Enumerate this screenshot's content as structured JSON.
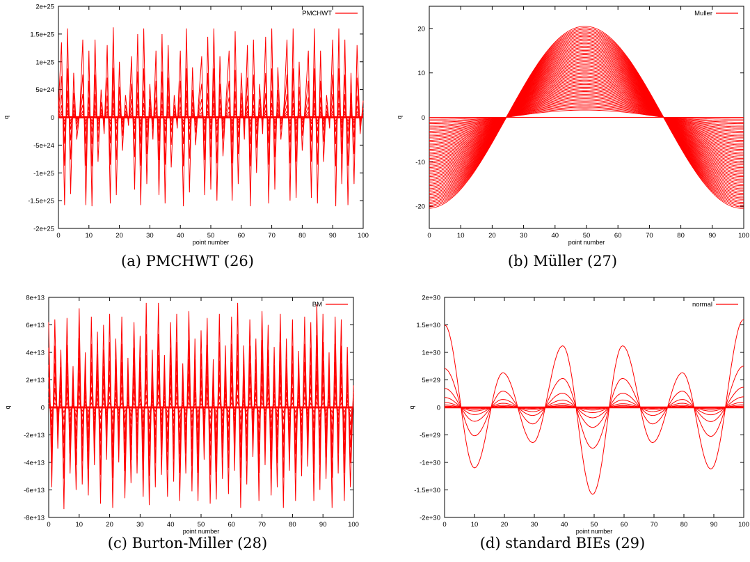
{
  "chart_data": [
    {
      "type": "line",
      "caption": "(a) PMCHWT (26)",
      "xlabel": "point number",
      "ylabel": "q",
      "xlim": [
        0,
        100
      ],
      "ylim": [
        -2e+25,
        2e+25
      ],
      "xticks": [
        "0",
        "10",
        "20",
        "30",
        "40",
        "50",
        "60",
        "70",
        "80",
        "90",
        "100"
      ],
      "yticks": [
        "-2e+25",
        "-1.5e+25",
        "-1e+25",
        "-5e+24",
        "0",
        "5e+24",
        "1e+25",
        "1.5e+25",
        "2e+25"
      ],
      "legend": "top-right",
      "grid": false,
      "series": [
        {
          "name": "PMCHWT",
          "color": "#ff0000",
          "values": [
            2e+24,
            1.35e+25,
            -1.58e+25,
            1.6e+25,
            -1.38e+25,
            8e+24,
            -4e+24,
            1e+24,
            1.4e+25,
            -1.58e+25,
            1.2e+25,
            -1.6e+25,
            1.4e+25,
            -8e+24,
            5e+24,
            -3e+24,
            1.3e+25,
            -1.55e+25,
            1.62e+25,
            -1.4e+25,
            1e+25,
            -6e+24,
            4e+24,
            -1.5e+24,
            1.1e+25,
            -1.3e+25,
            1.5e+25,
            -1.58e+25,
            1.6e+25,
            -1.2e+25,
            6e+24,
            -4e+24,
            1.2e+25,
            -1.4e+25,
            1.5e+25,
            -1.55e+25,
            1.3e+25,
            -9e+24,
            4e+24,
            -2e+24,
            1.2e+25,
            -1.6e+25,
            1.6e+25,
            -1.35e+25,
            9e+24,
            -5e+24,
            3e+24,
            1.1e+25,
            -1.4e+25,
            1.45e+25,
            -1.3e+25,
            1.6e+25,
            -1.5e+25,
            1.1e+25,
            -7e+24,
            3e+24,
            1.2e+25,
            -1.5e+25,
            1.55e+25,
            -1.2e+25,
            8e+24,
            -4e+24,
            1.3e+25,
            -1.6e+25,
            1.4e+25,
            -1e+25,
            6e+24,
            -3e+24,
            1.45e+25,
            -1.55e+25,
            1.6e+25,
            -1.3e+25,
            9e+24,
            -4e+24,
            2e+24,
            1.4e+25,
            -1.5e+25,
            1.6e+25,
            -1.45e+25,
            1e+25,
            -6e+24,
            3e+24,
            1.2e+25,
            -1.45e+25,
            1.6e+25,
            -1.55e+25,
            1.2e+25,
            -8e+24,
            4e+24,
            -2e+24,
            1.4e+25,
            -1.6e+25,
            1.6e+25,
            -1.2e+25,
            1.4e+25,
            -1.58e+25,
            8e+24,
            -1.2e+25,
            1.3e+25,
            -3e+24,
            3e+24
          ]
        }
      ]
    },
    {
      "type": "line",
      "caption": "(b) Müller (27)",
      "xlabel": "point number",
      "ylabel": "q",
      "xlim": [
        0,
        100
      ],
      "ylim": [
        -25,
        25
      ],
      "xticks": [
        "0",
        "10",
        "20",
        "30",
        "40",
        "50",
        "60",
        "70",
        "80",
        "90",
        "100"
      ],
      "yticks": [
        "-20",
        "-10",
        "0",
        "10",
        "20"
      ],
      "legend": "top-right",
      "grid": false,
      "series": [
        {
          "name": "Muller",
          "color": "#ff0000",
          "amplitude": 20.5,
          "peak_x": 49.5,
          "zero_crossings": [
            24.5,
            74.5
          ]
        }
      ]
    },
    {
      "type": "line",
      "caption": "(c) Burton-Miller (28)",
      "xlabel": "point number",
      "ylabel": "q",
      "xlim": [
        0,
        100
      ],
      "ylim": [
        -80000000000000.0,
        80000000000000.0
      ],
      "xticks": [
        "0",
        "10",
        "20",
        "30",
        "40",
        "50",
        "60",
        "70",
        "80",
        "90",
        "100"
      ],
      "yticks": [
        "-8e+13",
        "-6e+13",
        "-4e+13",
        "-2e+13",
        "0",
        "2e+13",
        "4e+13",
        "6e+13",
        "8e+13"
      ],
      "legend": "top-right",
      "grid": false,
      "series": [
        {
          "name": "BM",
          "color": "#ff0000",
          "values": [
            62000000000000.0,
            -58000000000000.0,
            64000000000000.0,
            -30000000000000.0,
            42000000000000.0,
            -74000000000000.0,
            65000000000000.0,
            -48000000000000.0,
            30000000000000.0,
            -60000000000000.0,
            72000000000000.0,
            -56000000000000.0,
            40000000000000.0,
            -64000000000000.0,
            66000000000000.0,
            -42000000000000.0,
            55000000000000.0,
            -70000000000000.0,
            60000000000000.0,
            -38000000000000.0,
            68000000000000.0,
            -73000000000000.0,
            50000000000000.0,
            -40000000000000.0,
            66000000000000.0,
            -66000000000000.0,
            36000000000000.0,
            -55000000000000.0,
            62000000000000.0,
            -48000000000000.0,
            52000000000000.0,
            -65000000000000.0,
            76000000000000.0,
            -71000000000000.0,
            42000000000000.0,
            -58000000000000.0,
            76000000000000.0,
            -49000000000000.0,
            38000000000000.0,
            -65000000000000.0,
            62000000000000.0,
            -54000000000000.0,
            68000000000000.0,
            -68000000000000.0,
            32000000000000.0,
            -48000000000000.0,
            70000000000000.0,
            -61000000000000.0,
            50000000000000.0,
            -68000000000000.0,
            56000000000000.0,
            -38000000000000.0,
            65000000000000.0,
            -70000000000000.0,
            35000000000000.0,
            -67000000000000.0,
            68000000000000.0,
            -52000000000000.0,
            45000000000000.0,
            -63000000000000.0,
            66000000000000.0,
            -46000000000000.0,
            76000000000000.0,
            -73000000000000.0,
            45000000000000.0,
            -56000000000000.0,
            64000000000000.0,
            -36000000000000.0,
            50000000000000.0,
            -68000000000000.0,
            70000000000000.0,
            -42000000000000.0,
            60000000000000.0,
            -64000000000000.0,
            44000000000000.0,
            -58000000000000.0,
            68000000000000.0,
            -73000000000000.0,
            50000000000000.0,
            -46000000000000.0,
            64000000000000.0,
            -68000000000000.0,
            41000000000000.0,
            -50000000000000.0,
            66000000000000.0,
            -43000000000000.0,
            62000000000000.0,
            -68000000000000.0,
            75000000000000.0,
            -60000000000000.0,
            68000000000000.0,
            -52000000000000.0,
            40000000000000.0,
            -73000000000000.0,
            66000000000000.0,
            -48000000000000.0,
            64000000000000.0,
            -68000000000000.0,
            44000000000000.0,
            -58000000000000.0,
            16000000000000.0
          ]
        }
      ]
    },
    {
      "type": "line",
      "caption": "(d) standard BIEs (29)",
      "xlabel": "point number",
      "ylabel": "q",
      "xlim": [
        0,
        100
      ],
      "ylim": [
        -2e+30,
        2e+30
      ],
      "xticks": [
        "0",
        "10",
        "20",
        "30",
        "40",
        "50",
        "60",
        "70",
        "80",
        "90",
        "100"
      ],
      "yticks": [
        "-2e+30",
        "-1.5e+30",
        "-1e+30",
        "-5e+29",
        "0",
        "5e+29",
        "1e+30",
        "1.5e+30",
        "2e+30"
      ],
      "legend": "top-right",
      "grid": false,
      "series": [
        {
          "name": "normal",
          "color": "#ff0000",
          "peaks": [
            [
              0,
              1.5e+30
            ],
            [
              10,
              -1.1e+30
            ],
            [
              19.5,
              6.3e+29
            ],
            [
              29.5,
              -6.4e+29
            ],
            [
              39.5,
              1.12e+30
            ],
            [
              49.5,
              -1.58e+30
            ],
            [
              59.5,
              1.12e+30
            ],
            [
              69.5,
              -6.4e+29
            ],
            [
              79.5,
              6.3e+29
            ],
            [
              89,
              -1.12e+30
            ],
            [
              100,
              1.6e+30
            ]
          ],
          "scales": [
            1,
            0.47,
            0.23,
            0.12,
            0.06,
            0.03,
            0.015
          ]
        }
      ]
    }
  ]
}
